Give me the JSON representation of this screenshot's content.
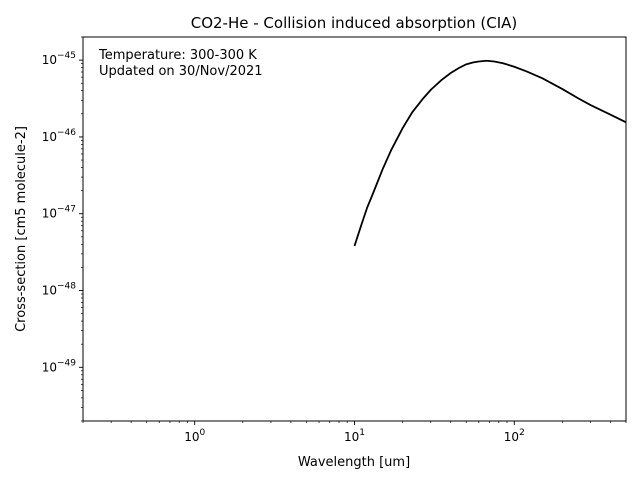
{
  "chart_data": {
    "type": "line",
    "title": "CO2-He - Collision induced absorption (CIA)",
    "xlabel": "Wavelength [um]",
    "ylabel": "Cross-section [cm5 molecule-2]",
    "xscale": "log",
    "yscale": "log",
    "xlim": [
      0.2,
      500
    ],
    "ylim": [
      2e-50,
      2e-45
    ],
    "grid": false,
    "annotation_lines": [
      "Temperature: 300-300 K",
      "Updated on 30/Nov/2021"
    ],
    "x_ticks": [
      {
        "value": 1,
        "base": "10",
        "exp": "0"
      },
      {
        "value": 10,
        "base": "10",
        "exp": "1"
      },
      {
        "value": 100,
        "base": "10",
        "exp": "2"
      }
    ],
    "y_ticks": [
      {
        "value": 1e-45,
        "base": "10",
        "exp": "−45"
      },
      {
        "value": 1e-46,
        "base": "10",
        "exp": "−46"
      },
      {
        "value": 1e-47,
        "base": "10",
        "exp": "−47"
      },
      {
        "value": 1e-48,
        "base": "10",
        "exp": "−48"
      },
      {
        "value": 1e-49,
        "base": "10",
        "exp": "−49"
      }
    ],
    "series": [
      {
        "color": "#000000",
        "x": [
          10,
          11,
          12,
          13,
          15,
          17,
          20,
          23,
          27,
          30,
          35,
          40,
          45,
          50,
          55,
          60,
          67,
          75,
          85,
          100,
          120,
          150,
          200,
          250,
          300,
          400,
          500
        ],
        "y": [
          3.8e-48,
          7e-48,
          1.2e-47,
          1.8e-47,
          3.8e-47,
          6.8e-47,
          1.3e-46,
          2.1e-46,
          3.2e-46,
          4.1e-46,
          5.5e-46,
          6.8e-46,
          7.9e-46,
          8.8e-46,
          9.3e-46,
          9.6e-46,
          9.8e-46,
          9.6e-46,
          9.1e-46,
          8.2e-46,
          7.1e-46,
          5.8e-46,
          4.2e-46,
          3.2e-46,
          2.6e-46,
          1.95e-46,
          1.55e-46
        ]
      }
    ]
  }
}
